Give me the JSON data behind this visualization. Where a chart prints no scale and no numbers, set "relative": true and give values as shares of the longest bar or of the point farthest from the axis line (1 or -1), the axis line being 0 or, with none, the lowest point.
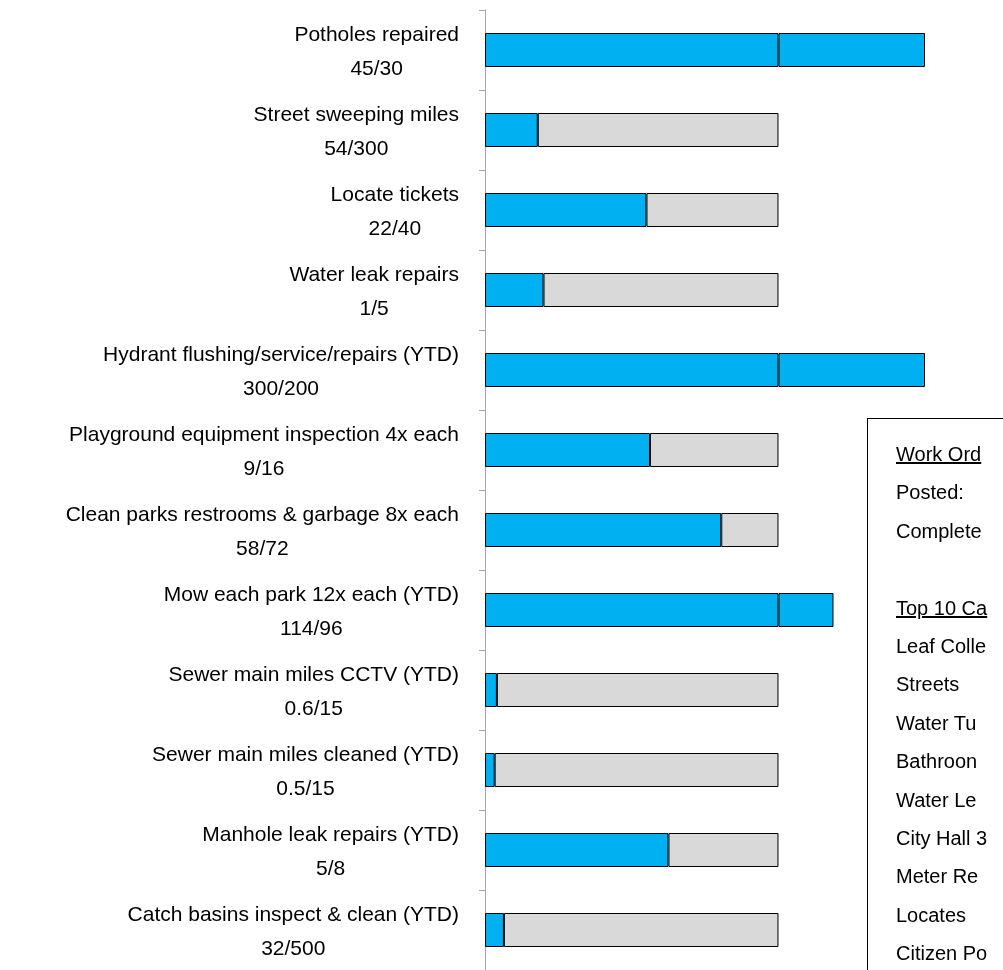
{
  "chart_data": {
    "type": "bar",
    "orientation": "horizontal",
    "relative": true,
    "stacked": true,
    "categories": [
      "Potholes repaired",
      "Street sweeping miles",
      "Locate tickets",
      "Water leak repairs",
      "Hydrant flushing/service/repairs (YTD)",
      "Playground equipment inspection 4x each",
      "Clean parks restrooms & garbage 8x each",
      "Mow each park 12x each (YTD)",
      "Sewer main miles CCTV (YTD)",
      "Sewer main miles cleaned (YTD)",
      "Manhole leak repairs (YTD)",
      "Catch basins inspect & clean (YTD)"
    ],
    "value_labels": [
      "45/30",
      "54/300",
      "22/40",
      "1/5",
      "300/200",
      "9/16",
      "58/72",
      "114/96",
      "0.6/15",
      "0.5/15",
      "5/8",
      "32/500"
    ],
    "series": [
      {
        "color": "#00b0f0",
        "values": [
          0.667,
          0.12,
          0.367,
          0.133,
          0.667,
          0.375,
          0.537,
          0.667,
          0.027,
          0.022,
          0.417,
          0.043
        ]
      },
      {
        "color": "#d9d9d9",
        "values": [
          null,
          0.547,
          0.3,
          0.534,
          null,
          0.292,
          0.13,
          null,
          0.64,
          0.645,
          0.25,
          0.624
        ]
      },
      {
        "color": "#00b0f0",
        "values": [
          0.333,
          null,
          null,
          null,
          0.333,
          null,
          null,
          0.125,
          null,
          null,
          null,
          null
        ]
      }
    ],
    "annotations": [
      "Work Ord",
      "Posted:",
      "Complete",
      "Top 10 Ca",
      "Leaf Colle",
      "Streets",
      "Water Tu",
      "Bathroon",
      "Water Le",
      "City Hall 3",
      "Meter Re",
      "Locates",
      "Citizen Po"
    ]
  }
}
